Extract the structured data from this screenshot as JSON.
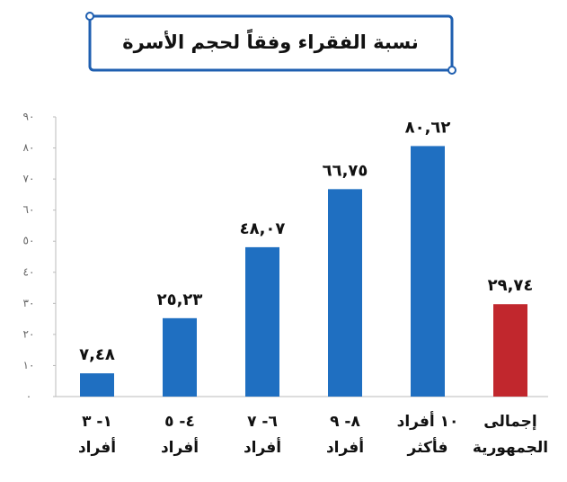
{
  "chart_data": {
    "type": "bar",
    "title": "نسبة الفقراء وفقاً لحجم الأسرة",
    "categories": [
      "١- ٣\nأفراد",
      "٤- ٥\nأفراد",
      "٦- ٧\nأفراد",
      "٨- ٩\nأفراد",
      "١٠ أفراد\nفأكثر",
      "إجمالى\nالجمهورية"
    ],
    "values": [
      7.48,
      25.23,
      48.07,
      66.75,
      80.62,
      29.74
    ],
    "value_labels": [
      "٧,٤٨",
      "٢٥,٢٣",
      "٤٨,٠٧",
      "٦٦,٧٥",
      "٨٠,٦٢",
      "٢٩,٧٤"
    ],
    "colors": [
      "#1f6fc1",
      "#1f6fc1",
      "#1f6fc1",
      "#1f6fc1",
      "#1f6fc1",
      "#c1272d"
    ],
    "ylim": [
      0,
      90
    ],
    "yticks": [
      {
        "value": 0,
        "label": "٠"
      },
      {
        "value": 10,
        "label": "١٠"
      },
      {
        "value": 20,
        "label": "٢٠"
      },
      {
        "value": 30,
        "label": "٣٠"
      },
      {
        "value": 40,
        "label": "٤٠"
      },
      {
        "value": 50,
        "label": "٥٠"
      },
      {
        "value": 60,
        "label": "٦٠"
      },
      {
        "value": 70,
        "label": "٧٠"
      },
      {
        "value": 80,
        "label": "٨٠"
      },
      {
        "value": 90,
        "label": "٩٠"
      }
    ]
  }
}
